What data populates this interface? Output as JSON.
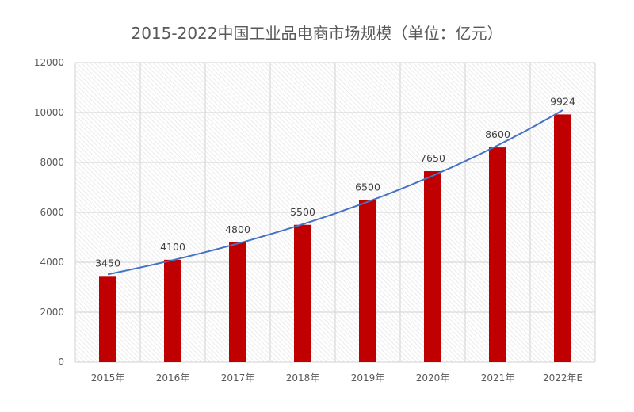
{
  "chart_data": {
    "type": "bar",
    "title": "2015-2022中国工业品电商市场规模（单位：亿元）",
    "categories": [
      "2015年",
      "2016年",
      "2017年",
      "2018年",
      "2019年",
      "2020年",
      "2021年",
      "2022年E"
    ],
    "values": [
      3450,
      4100,
      4800,
      5500,
      6500,
      7650,
      8600,
      9924
    ],
    "data_labels": [
      "3450",
      "4100",
      "4800",
      "5500",
      "6500",
      "7650",
      "8600",
      "9924"
    ],
    "ylim": [
      0,
      12000
    ],
    "yticks": [
      "0",
      "2000",
      "4000",
      "6000",
      "8000",
      "10000",
      "12000"
    ],
    "trendline": "exponential",
    "grid": true,
    "legend": "none",
    "colors": {
      "bar": "#C00000",
      "trendline": "#4472C4",
      "grid": "#D9D9D9",
      "hatch": "#E6E6E6"
    }
  }
}
